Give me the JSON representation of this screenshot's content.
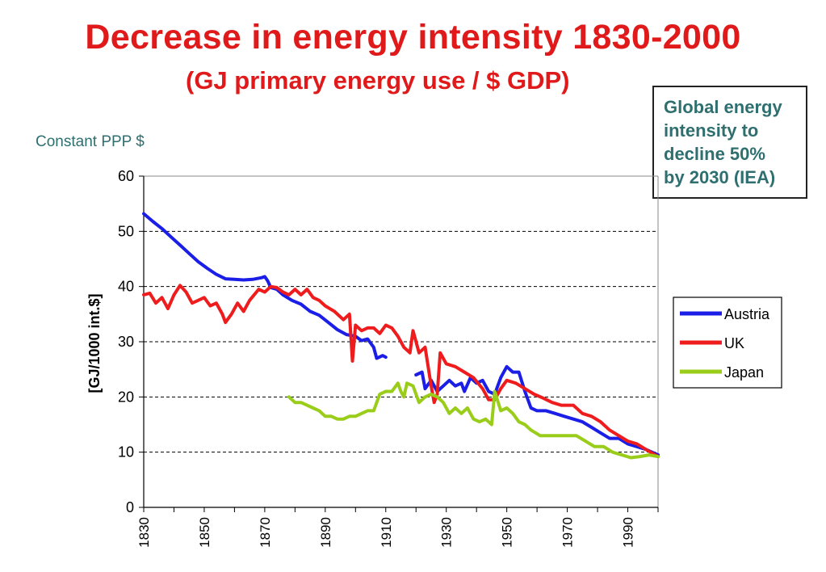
{
  "header": {
    "title": "Decrease in energy intensity 1830-2000",
    "subtitle": "(GJ primary energy use / $ GDP)"
  },
  "note": "Constant PPP $",
  "callout": {
    "lines": [
      "Global energy",
      "intensity to",
      "decline 50%",
      "by 2030 (IEA)"
    ]
  },
  "colors": {
    "austria": "#1a1ee6",
    "uk": "#ee1c1c",
    "japan": "#9acd1a",
    "title": "#e01a1a",
    "callout_text": "#2f6f6f"
  },
  "chart_data": {
    "type": "line",
    "title": "Decrease in energy intensity 1830-2000",
    "xlabel": "",
    "ylabel": "[GJ/1000 int.$]",
    "xlim": [
      1830,
      2000
    ],
    "ylim": [
      0,
      60
    ],
    "x_ticks": [
      1830,
      1850,
      1870,
      1890,
      1910,
      1930,
      1950,
      1970,
      1990
    ],
    "y_ticks": [
      0,
      10,
      20,
      30,
      40,
      50,
      60
    ],
    "grid": "horizontal dashed",
    "legend_position": "right",
    "series": [
      {
        "name": "Austria",
        "color": "#1a1ee6",
        "segments": [
          [
            [
              1830,
              53.2
            ],
            [
              1833,
              51.8
            ],
            [
              1836,
              50.5
            ],
            [
              1839,
              49
            ],
            [
              1842,
              47.5
            ],
            [
              1845,
              46
            ],
            [
              1848,
              44.5
            ],
            [
              1851,
              43.3
            ],
            [
              1854,
              42.2
            ],
            [
              1857,
              41.4
            ],
            [
              1860,
              41.3
            ],
            [
              1863,
              41.2
            ],
            [
              1866,
              41.3
            ],
            [
              1869,
              41.6
            ],
            [
              1870,
              41.8
            ],
            [
              1871,
              41
            ],
            [
              1872,
              39.8
            ],
            [
              1874,
              39.5
            ],
            [
              1876,
              38.5
            ],
            [
              1879,
              37.5
            ],
            [
              1882,
              36.8
            ],
            [
              1885,
              35.5
            ],
            [
              1888,
              34.8
            ],
            [
              1891,
              33.5
            ],
            [
              1894,
              32.2
            ],
            [
              1897,
              31.3
            ],
            [
              1900,
              31
            ],
            [
              1902,
              30.2
            ],
            [
              1904,
              30.5
            ],
            [
              1906,
              29
            ],
            [
              1907,
              27
            ],
            [
              1909,
              27.5
            ],
            [
              1910,
              27.2
            ]
          ],
          [
            [
              1920,
              24
            ],
            [
              1922,
              24.5
            ],
            [
              1923,
              21.5
            ],
            [
              1925,
              23
            ],
            [
              1927,
              21
            ],
            [
              1929,
              22
            ],
            [
              1931,
              23
            ],
            [
              1933,
              22
            ],
            [
              1935,
              22.5
            ],
            [
              1936,
              21
            ],
            [
              1938,
              23.5
            ],
            [
              1940,
              22.5
            ],
            [
              1942,
              23
            ],
            [
              1944,
              21
            ],
            [
              1946,
              20.5
            ],
            [
              1948,
              23.5
            ],
            [
              1950,
              25.5
            ],
            [
              1952,
              24.5
            ],
            [
              1954,
              24.5
            ],
            [
              1956,
              21
            ],
            [
              1958,
              18
            ],
            [
              1960,
              17.5
            ],
            [
              1963,
              17.5
            ],
            [
              1966,
              17
            ],
            [
              1969,
              16.5
            ],
            [
              1972,
              16
            ],
            [
              1975,
              15.5
            ],
            [
              1978,
              14.5
            ],
            [
              1981,
              13.5
            ],
            [
              1984,
              12.5
            ],
            [
              1987,
              12.5
            ],
            [
              1990,
              11.5
            ],
            [
              1993,
              11
            ],
            [
              1996,
              10.5
            ],
            [
              2000,
              9.5
            ]
          ]
        ]
      },
      {
        "name": "UK",
        "color": "#ee1c1c",
        "segments": [
          [
            [
              1830,
              38.5
            ],
            [
              1832,
              38.8
            ],
            [
              1834,
              37
            ],
            [
              1836,
              38
            ],
            [
              1838,
              36
            ],
            [
              1840,
              38.5
            ],
            [
              1842,
              40.2
            ],
            [
              1844,
              39
            ],
            [
              1846,
              37
            ],
            [
              1848,
              37.5
            ],
            [
              1850,
              38
            ],
            [
              1852,
              36.5
            ],
            [
              1854,
              37
            ],
            [
              1856,
              35
            ],
            [
              1857,
              33.5
            ],
            [
              1859,
              35
            ],
            [
              1861,
              37
            ],
            [
              1863,
              35.5
            ],
            [
              1865,
              37.5
            ],
            [
              1868,
              39.5
            ],
            [
              1870,
              39
            ],
            [
              1872,
              40
            ],
            [
              1874,
              39.8
            ],
            [
              1876,
              39
            ],
            [
              1878,
              38.5
            ],
            [
              1880,
              39.5
            ],
            [
              1882,
              38.5
            ],
            [
              1884,
              39.5
            ],
            [
              1886,
              38
            ],
            [
              1888,
              37.5
            ],
            [
              1890,
              36.5
            ],
            [
              1893,
              35.5
            ],
            [
              1896,
              34
            ],
            [
              1898,
              35
            ],
            [
              1899,
              26.5
            ],
            [
              1900,
              33
            ],
            [
              1902,
              32
            ],
            [
              1904,
              32.5
            ],
            [
              1906,
              32.5
            ],
            [
              1908,
              31.5
            ],
            [
              1910,
              33
            ],
            [
              1912,
              32.5
            ],
            [
              1914,
              31
            ],
            [
              1916,
              29
            ],
            [
              1918,
              28
            ],
            [
              1919,
              32
            ],
            [
              1921,
              28
            ],
            [
              1923,
              29
            ],
            [
              1925,
              22
            ],
            [
              1926,
              19
            ],
            [
              1927,
              20.5
            ],
            [
              1928,
              28
            ],
            [
              1930,
              26
            ],
            [
              1933,
              25.5
            ],
            [
              1936,
              24.5
            ],
            [
              1939,
              23.5
            ],
            [
              1942,
              21.5
            ],
            [
              1944,
              19.5
            ],
            [
              1946,
              19.5
            ],
            [
              1948,
              21.5
            ],
            [
              1950,
              23
            ],
            [
              1953,
              22.5
            ],
            [
              1956,
              21.5
            ],
            [
              1959,
              20.5
            ],
            [
              1962,
              19.8
            ],
            [
              1965,
              19
            ],
            [
              1968,
              18.5
            ],
            [
              1972,
              18.5
            ],
            [
              1975,
              17
            ],
            [
              1978,
              16.5
            ],
            [
              1981,
              15.5
            ],
            [
              1984,
              14
            ],
            [
              1987,
              13
            ],
            [
              1990,
              12
            ],
            [
              1993,
              11.5
            ],
            [
              1996,
              10.5
            ],
            [
              2000,
              9.2
            ]
          ]
        ]
      },
      {
        "name": "Japan",
        "color": "#9acd1a",
        "segments": [
          [
            [
              1878,
              20
            ],
            [
              1880,
              19
            ],
            [
              1882,
              19
            ],
            [
              1884,
              18.5
            ],
            [
              1886,
              18
            ],
            [
              1888,
              17.5
            ],
            [
              1890,
              16.5
            ],
            [
              1892,
              16.5
            ],
            [
              1894,
              16
            ],
            [
              1896,
              16
            ],
            [
              1898,
              16.5
            ],
            [
              1900,
              16.5
            ],
            [
              1902,
              17
            ],
            [
              1904,
              17.5
            ],
            [
              1906,
              17.5
            ],
            [
              1908,
              20.5
            ],
            [
              1910,
              21
            ],
            [
              1912,
              21
            ],
            [
              1914,
              22.5
            ],
            [
              1915,
              21
            ],
            [
              1916,
              20
            ],
            [
              1917,
              22.5
            ],
            [
              1919,
              22
            ],
            [
              1921,
              19
            ],
            [
              1923,
              20
            ],
            [
              1925,
              20.5
            ],
            [
              1927,
              20
            ],
            [
              1929,
              19
            ],
            [
              1931,
              17
            ],
            [
              1933,
              18
            ],
            [
              1935,
              17
            ],
            [
              1937,
              18
            ],
            [
              1939,
              16
            ],
            [
              1941,
              15.5
            ],
            [
              1943,
              16
            ],
            [
              1945,
              15
            ],
            [
              1946,
              21
            ],
            [
              1948,
              17.5
            ],
            [
              1950,
              18
            ],
            [
              1952,
              17
            ],
            [
              1954,
              15.5
            ],
            [
              1956,
              15
            ],
            [
              1958,
              14
            ],
            [
              1961,
              13
            ],
            [
              1964,
              13
            ],
            [
              1967,
              13
            ],
            [
              1970,
              13
            ],
            [
              1973,
              13
            ],
            [
              1976,
              12
            ],
            [
              1979,
              11
            ],
            [
              1982,
              11
            ],
            [
              1985,
              10
            ],
            [
              1988,
              9.5
            ],
            [
              1991,
              9
            ],
            [
              1994,
              9.2
            ],
            [
              1997,
              9.5
            ],
            [
              2000,
              9.2
            ]
          ]
        ]
      }
    ]
  }
}
